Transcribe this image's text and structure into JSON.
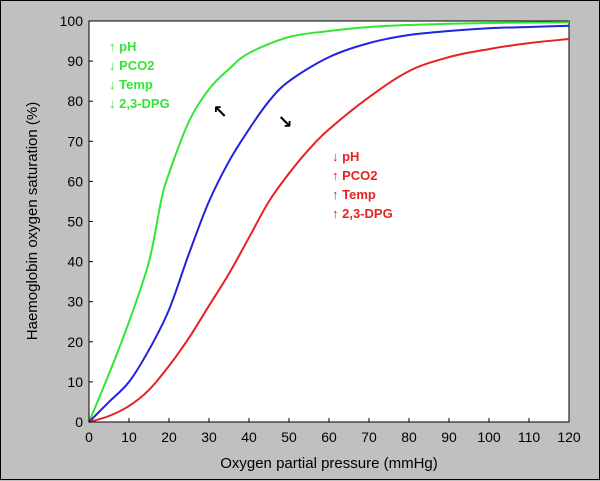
{
  "chart_data": {
    "type": "line",
    "title": "",
    "xlabel": "Oxygen partial pressure (mmHg)",
    "ylabel": "Haemoglobin oxygen saturation (%)",
    "xlim": [
      0,
      120
    ],
    "ylim": [
      0,
      100
    ],
    "xticks": [
      0,
      10,
      20,
      30,
      40,
      50,
      60,
      70,
      80,
      90,
      100,
      110,
      120
    ],
    "yticks": [
      0,
      10,
      20,
      30,
      40,
      50,
      60,
      70,
      80,
      90,
      100
    ],
    "grid": false,
    "background_color": "#c0c0c0",
    "series": [
      {
        "color": "#33e633",
        "points": [
          [
            0,
            0
          ],
          [
            5,
            12
          ],
          [
            10,
            25
          ],
          [
            15,
            40
          ],
          [
            18,
            55
          ],
          [
            20,
            62
          ],
          [
            25,
            75
          ],
          [
            30,
            83
          ],
          [
            35,
            88
          ],
          [
            40,
            92
          ],
          [
            50,
            96
          ],
          [
            60,
            97.5
          ],
          [
            70,
            98.5
          ],
          [
            80,
            99
          ],
          [
            90,
            99.3
          ],
          [
            100,
            99.5
          ],
          [
            110,
            99.6
          ],
          [
            120,
            99.7
          ]
        ]
      },
      {
        "color": "#2222e0",
        "points": [
          [
            0,
            0
          ],
          [
            5,
            5
          ],
          [
            10,
            10
          ],
          [
            15,
            18
          ],
          [
            20,
            28
          ],
          [
            25,
            42
          ],
          [
            30,
            55
          ],
          [
            35,
            65
          ],
          [
            40,
            73
          ],
          [
            45,
            80
          ],
          [
            50,
            85
          ],
          [
            60,
            91
          ],
          [
            70,
            94.5
          ],
          [
            80,
            96.5
          ],
          [
            90,
            97.5
          ],
          [
            100,
            98.2
          ],
          [
            110,
            98.5
          ],
          [
            120,
            98.8
          ]
        ]
      },
      {
        "color": "#e62222",
        "points": [
          [
            0,
            0
          ],
          [
            5,
            1.5
          ],
          [
            10,
            4
          ],
          [
            15,
            8
          ],
          [
            20,
            14
          ],
          [
            25,
            21
          ],
          [
            30,
            29
          ],
          [
            35,
            37
          ],
          [
            40,
            46
          ],
          [
            45,
            55
          ],
          [
            50,
            62
          ],
          [
            55,
            68
          ],
          [
            60,
            73
          ],
          [
            70,
            81
          ],
          [
            80,
            87.5
          ],
          [
            90,
            91
          ],
          [
            100,
            93
          ],
          [
            110,
            94.5
          ],
          [
            120,
            95.5
          ]
        ]
      }
    ],
    "annotations": {
      "left": {
        "color": "#33e633",
        "lines": [
          "↑ pH",
          "↓ PCO2",
          "↓ Temp",
          "↓ 2,3-DPG"
        ]
      },
      "right": {
        "color": "#e62222",
        "lines": [
          "↓ pH",
          "↑ PCO2",
          "↑ Temp",
          "↑ 2,3-DPG"
        ]
      },
      "arrows": [
        {
          "symbol": "↖",
          "color": "#000000"
        },
        {
          "symbol": "↘",
          "color": "#000000"
        }
      ]
    }
  }
}
